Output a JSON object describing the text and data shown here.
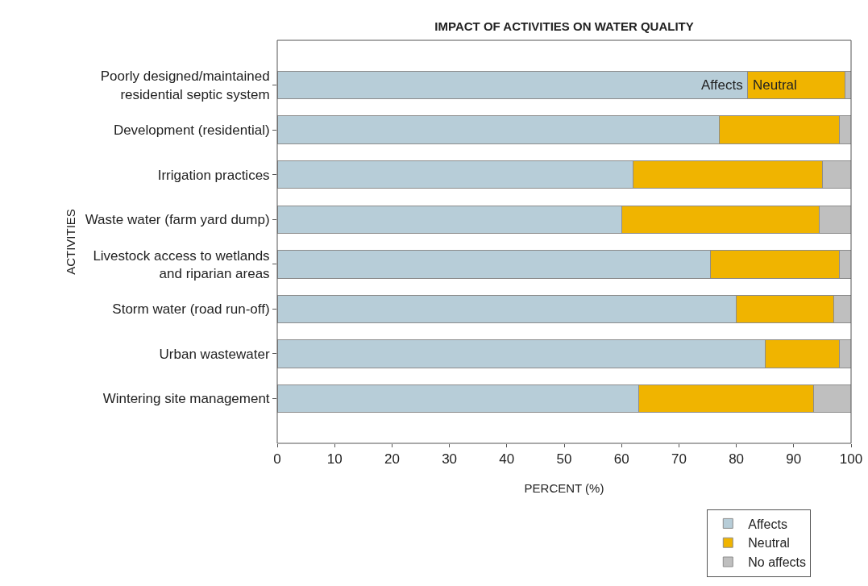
{
  "chart_data": {
    "type": "bar",
    "orientation": "horizontal",
    "stacked": true,
    "title": "IMPACT OF ACTIVITIES ON WATER QUALITY",
    "xlabel": "PERCENT (%)",
    "ylabel": "ACTIVITIES",
    "categories": [
      "Poorly designed/maintained residential septic system",
      "Development (residential)",
      "Irrigation practices",
      "Waste water (farm yard dump)",
      "Livestock access to wetlands and riparian areas",
      "Storm water (road run-off)",
      "Urban wastewater",
      "Wintering site management"
    ],
    "series": [
      {
        "name": "Affects",
        "color": "#b7cdd8",
        "values": [
          82,
          77,
          62,
          60,
          75.5,
          80,
          85,
          63
        ]
      },
      {
        "name": "Neutral",
        "color": "#f0b400",
        "values": [
          17,
          21,
          33,
          34.5,
          22.5,
          17,
          13,
          30.5
        ]
      },
      {
        "name": "No affects",
        "color": "#bfbfbf",
        "values": [
          1,
          2,
          5,
          5.5,
          2,
          3,
          2,
          6.5
        ]
      }
    ],
    "xlim": [
      0,
      100
    ],
    "xticks": [
      0,
      10,
      20,
      30,
      40,
      50,
      60,
      70,
      80,
      90,
      100
    ],
    "grid": false,
    "legend": "bottom right",
    "annotations": [
      "Affects",
      "Neutral"
    ]
  }
}
